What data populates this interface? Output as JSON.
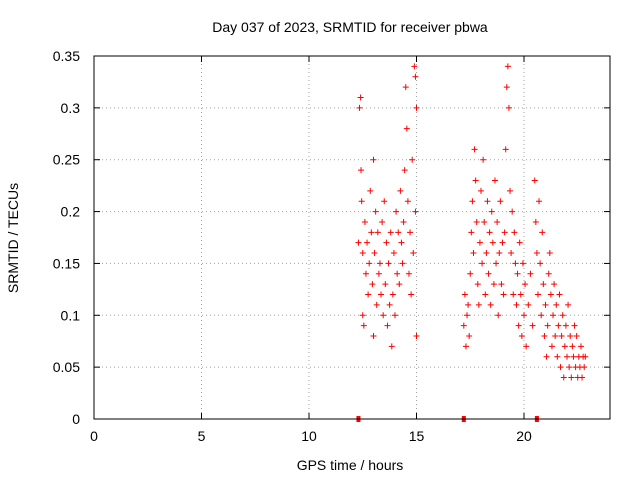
{
  "chart_data": {
    "type": "scatter",
    "title": "Day 037 of 2023, SRMTID for receiver pbwa",
    "xlabel": "GPS time / hours",
    "ylabel": "SRMTID / TECUs",
    "xlim": [
      0,
      24
    ],
    "ylim": [
      0,
      0.35
    ],
    "x_ticks": [
      0,
      5,
      10,
      15,
      20
    ],
    "y_ticks": [
      0,
      0.05,
      0.1,
      0.15,
      0.2,
      0.25,
      0.3,
      0.35
    ],
    "x_tick_labels": [
      "0",
      "5",
      "10",
      "15",
      "20"
    ],
    "y_tick_labels": [
      "0",
      "0.05",
      "0.1",
      "0.15",
      "0.2",
      "0.25",
      "0.3",
      "0.35"
    ],
    "grid": true,
    "marker": "+",
    "color": "#ff0000",
    "series": [
      {
        "points": [
          [
            12.3,
            0.17
          ],
          [
            12.35,
            0.3
          ],
          [
            12.4,
            0.31
          ],
          [
            12.42,
            0.24
          ],
          [
            12.45,
            0.21
          ],
          [
            12.5,
            0.16
          ],
          [
            12.5,
            0.1
          ],
          [
            12.55,
            0.09
          ],
          [
            12.6,
            0.19
          ],
          [
            12.65,
            0.14
          ],
          [
            12.7,
            0.17
          ],
          [
            12.75,
            0.12
          ],
          [
            12.8,
            0.15
          ],
          [
            12.85,
            0.22
          ],
          [
            12.9,
            0.18
          ],
          [
            12.95,
            0.13
          ],
          [
            13.0,
            0.25
          ],
          [
            13.0,
            0.08
          ],
          [
            13.05,
            0.16
          ],
          [
            13.1,
            0.2
          ],
          [
            13.15,
            0.11
          ],
          [
            13.2,
            0.18
          ],
          [
            13.25,
            0.14
          ],
          [
            13.3,
            0.15
          ],
          [
            13.35,
            0.12
          ],
          [
            13.4,
            0.19
          ],
          [
            13.45,
            0.1
          ],
          [
            13.5,
            0.21
          ],
          [
            13.55,
            0.13
          ],
          [
            13.6,
            0.17
          ],
          [
            13.65,
            0.09
          ],
          [
            13.7,
            0.15
          ],
          [
            13.75,
            0.11
          ],
          [
            13.8,
            0.18
          ],
          [
            13.85,
            0.07
          ],
          [
            13.9,
            0.12
          ],
          [
            13.95,
            0.16
          ],
          [
            14.0,
            0.1
          ],
          [
            14.05,
            0.2
          ],
          [
            14.1,
            0.14
          ],
          [
            14.15,
            0.18
          ],
          [
            14.2,
            0.13
          ],
          [
            14.25,
            0.22
          ],
          [
            14.3,
            0.17
          ],
          [
            14.35,
            0.15
          ],
          [
            14.4,
            0.19
          ],
          [
            14.45,
            0.24
          ],
          [
            14.5,
            0.32
          ],
          [
            14.55,
            0.28
          ],
          [
            14.6,
            0.21
          ],
          [
            14.65,
            0.14
          ],
          [
            14.7,
            0.18
          ],
          [
            14.75,
            0.12
          ],
          [
            14.8,
            0.25
          ],
          [
            14.85,
            0.16
          ],
          [
            14.9,
            0.34
          ],
          [
            14.95,
            0.33
          ],
          [
            15.0,
            0.3
          ],
          [
            15.0,
            0.08
          ],
          [
            14.95,
            0.2
          ],
          [
            17.2,
            0.09
          ],
          [
            17.25,
            0.12
          ],
          [
            17.3,
            0.07
          ],
          [
            17.35,
            0.1
          ],
          [
            17.4,
            0.11
          ],
          [
            17.45,
            0.08
          ],
          [
            17.5,
            0.14
          ],
          [
            17.55,
            0.18
          ],
          [
            17.6,
            0.21
          ],
          [
            17.65,
            0.16
          ],
          [
            17.7,
            0.26
          ],
          [
            17.75,
            0.23
          ],
          [
            17.8,
            0.19
          ],
          [
            17.85,
            0.13
          ],
          [
            17.9,
            0.11
          ],
          [
            17.95,
            0.17
          ],
          [
            18.0,
            0.22
          ],
          [
            18.05,
            0.15
          ],
          [
            18.1,
            0.25
          ],
          [
            18.15,
            0.19
          ],
          [
            18.2,
            0.12
          ],
          [
            18.25,
            0.16
          ],
          [
            18.3,
            0.21
          ],
          [
            18.35,
            0.14
          ],
          [
            18.4,
            0.18
          ],
          [
            18.45,
            0.11
          ],
          [
            18.5,
            0.2
          ],
          [
            18.55,
            0.17
          ],
          [
            18.6,
            0.13
          ],
          [
            18.65,
            0.23
          ],
          [
            18.7,
            0.15
          ],
          [
            18.75,
            0.19
          ],
          [
            18.8,
            0.1
          ],
          [
            18.85,
            0.16
          ],
          [
            18.9,
            0.21
          ],
          [
            18.95,
            0.13
          ],
          [
            19.0,
            0.17
          ],
          [
            19.05,
            0.12
          ],
          [
            19.1,
            0.18
          ],
          [
            19.15,
            0.26
          ],
          [
            19.2,
            0.32
          ],
          [
            19.25,
            0.34
          ],
          [
            19.3,
            0.3
          ],
          [
            19.35,
            0.22
          ],
          [
            19.4,
            0.16
          ],
          [
            19.45,
            0.2
          ],
          [
            19.5,
            0.12
          ],
          [
            19.55,
            0.18
          ],
          [
            19.6,
            0.15
          ],
          [
            19.65,
            0.11
          ],
          [
            19.7,
            0.14
          ],
          [
            19.75,
            0.09
          ],
          [
            19.8,
            0.17
          ],
          [
            19.85,
            0.12
          ],
          [
            19.9,
            0.08
          ],
          [
            19.95,
            0.15
          ],
          [
            20.0,
            0.1
          ],
          [
            20.05,
            0.13
          ],
          [
            20.1,
            0.07
          ],
          [
            20.2,
            0.11
          ],
          [
            20.3,
            0.14
          ],
          [
            20.4,
            0.09
          ],
          [
            20.5,
            0.23
          ],
          [
            20.55,
            0.19
          ],
          [
            20.6,
            0.16
          ],
          [
            20.65,
            0.12
          ],
          [
            20.7,
            0.21
          ],
          [
            20.75,
            0.15
          ],
          [
            20.8,
            0.1
          ],
          [
            20.85,
            0.18
          ],
          [
            20.9,
            0.13
          ],
          [
            20.95,
            0.08
          ],
          [
            21.0,
            0.11
          ],
          [
            21.05,
            0.06
          ],
          [
            21.1,
            0.09
          ],
          [
            21.15,
            0.14
          ],
          [
            21.2,
            0.16
          ],
          [
            21.25,
            0.12
          ],
          [
            21.3,
            0.07
          ],
          [
            21.35,
            0.1
          ],
          [
            21.4,
            0.13
          ],
          [
            21.45,
            0.08
          ],
          [
            21.5,
            0.11
          ],
          [
            21.55,
            0.06
          ],
          [
            21.6,
            0.09
          ],
          [
            21.65,
            0.12
          ],
          [
            21.7,
            0.05
          ],
          [
            21.75,
            0.08
          ],
          [
            21.8,
            0.1
          ],
          [
            21.85,
            0.04
          ],
          [
            21.9,
            0.07
          ],
          [
            21.95,
            0.09
          ],
          [
            22.0,
            0.06
          ],
          [
            22.05,
            0.11
          ],
          [
            22.1,
            0.05
          ],
          [
            22.15,
            0.08
          ],
          [
            22.2,
            0.04
          ],
          [
            22.25,
            0.07
          ],
          [
            22.3,
            0.06
          ],
          [
            22.35,
            0.09
          ],
          [
            22.4,
            0.05
          ],
          [
            22.45,
            0.08
          ],
          [
            22.5,
            0.04
          ],
          [
            22.55,
            0.06
          ],
          [
            22.6,
            0.05
          ],
          [
            22.65,
            0.07
          ],
          [
            22.7,
            0.04
          ],
          [
            22.75,
            0.06
          ],
          [
            22.8,
            0.05
          ],
          [
            22.85,
            0.06
          ]
        ]
      }
    ],
    "x_axis_markers": [
      12.3,
      17.2,
      20.6
    ]
  }
}
